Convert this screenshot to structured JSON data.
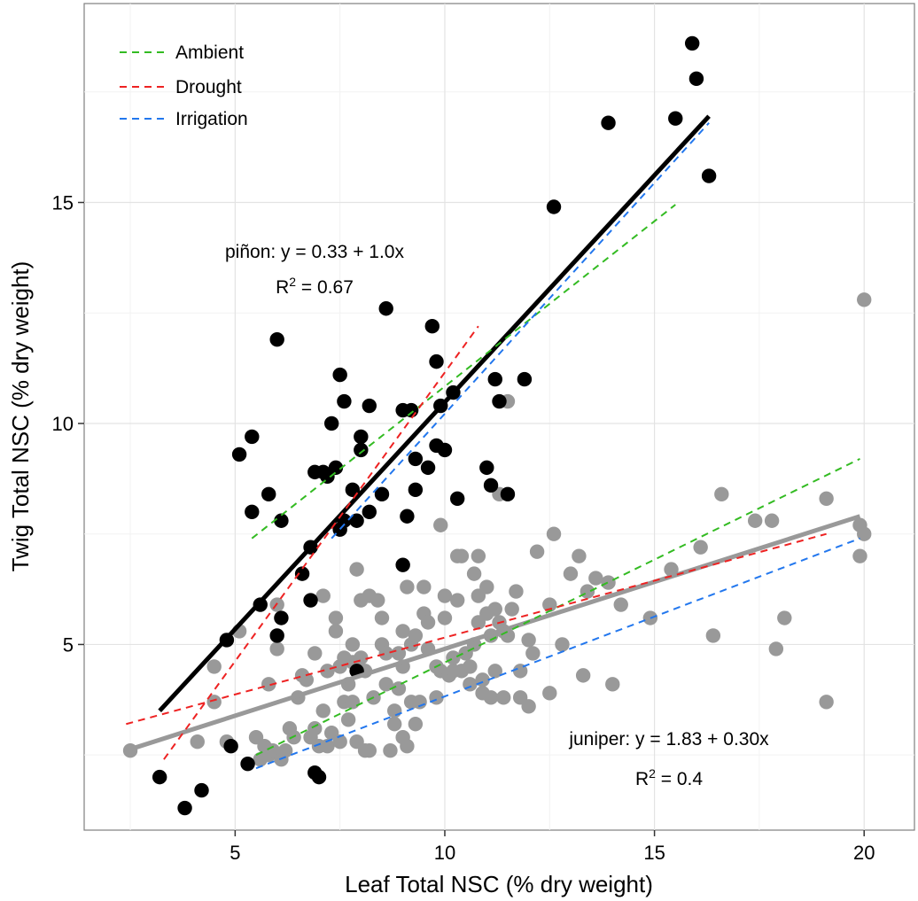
{
  "chart_data": {
    "type": "scatter",
    "xlabel": "Leaf Total NSC (% dry weight)",
    "ylabel": "Twig Total NSC (% dry weight)",
    "xlim": [
      1.4,
      21.2
    ],
    "ylim": [
      0.8,
      19.5
    ],
    "x_ticks": [
      5,
      10,
      15,
      20
    ],
    "y_ticks": [
      5,
      10,
      15
    ],
    "grid": true,
    "legend_position": "top-left",
    "legend": [
      {
        "label": "Ambient",
        "color": "#33bb22"
      },
      {
        "label": "Drought",
        "color": "#ee2222"
      },
      {
        "label": "Irrigation",
        "color": "#2277ee"
      }
    ],
    "annotations": [
      {
        "name": "pinon-equation",
        "text": "piñon: y = 0.33 + 1.0x",
        "r2_prefix": "R",
        "r2_sup": "2",
        "r2_value": " = 0.67"
      },
      {
        "name": "juniper-equation",
        "text": "juniper: y = 1.83 + 0.30x",
        "r2_prefix": "R",
        "r2_sup": "2",
        "r2_value": " = 0.4"
      }
    ],
    "fit_lines": [
      {
        "group": "pinon",
        "color": "#000000",
        "style": "solid",
        "x": [
          3.2,
          16.3
        ],
        "y": [
          3.5,
          16.95
        ]
      },
      {
        "group": "juniper",
        "color": "#999999",
        "style": "solid",
        "x": [
          2.4,
          19.9
        ],
        "y": [
          2.6,
          7.9
        ]
      },
      {
        "group": "pinon",
        "treatment": "Ambient",
        "color": "#33bb22",
        "style": "dashed",
        "x": [
          5.4,
          15.5
        ],
        "y": [
          7.4,
          14.95
        ]
      },
      {
        "group": "pinon",
        "treatment": "Drought",
        "color": "#ee2222",
        "style": "dashed",
        "x": [
          3.3,
          10.8
        ],
        "y": [
          2.4,
          12.2
        ]
      },
      {
        "group": "pinon",
        "treatment": "Irrigation",
        "color": "#2277ee",
        "style": "dashed",
        "x": [
          7.3,
          16.3
        ],
        "y": [
          7.4,
          16.8
        ]
      },
      {
        "group": "juniper",
        "treatment": "Ambient",
        "color": "#33bb22",
        "style": "dashed",
        "x": [
          5.5,
          19.9
        ],
        "y": [
          2.5,
          9.2
        ]
      },
      {
        "group": "juniper",
        "treatment": "Drought",
        "color": "#ee2222",
        "style": "dashed",
        "x": [
          2.4,
          19.1
        ],
        "y": [
          3.2,
          7.5
        ]
      },
      {
        "group": "juniper",
        "treatment": "Irrigation",
        "color": "#2277ee",
        "style": "dashed",
        "x": [
          5.5,
          19.9
        ],
        "y": [
          2.2,
          7.4
        ]
      }
    ],
    "series": [
      {
        "group": "juniper",
        "color": "#999999",
        "points": [
          [
            2.5,
            2.6
          ],
          [
            4.1,
            2.8
          ],
          [
            4.5,
            4.5
          ],
          [
            4.5,
            3.7
          ],
          [
            4.8,
            2.8
          ],
          [
            5.1,
            5.3
          ],
          [
            5.5,
            2.9
          ],
          [
            5.6,
            2.4
          ],
          [
            5.7,
            2.7
          ],
          [
            5.8,
            2.5
          ],
          [
            5.8,
            4.1
          ],
          [
            5.9,
            2.6
          ],
          [
            6.0,
            5.9
          ],
          [
            6.0,
            4.9
          ],
          [
            6.1,
            2.4
          ],
          [
            6.2,
            2.6
          ],
          [
            6.3,
            3.1
          ],
          [
            6.4,
            2.9
          ],
          [
            6.5,
            3.8
          ],
          [
            6.6,
            4.3
          ],
          [
            6.7,
            4.2
          ],
          [
            6.8,
            2.9
          ],
          [
            6.9,
            3.1
          ],
          [
            6.9,
            4.8
          ],
          [
            7.0,
            2.7
          ],
          [
            7.1,
            6.1
          ],
          [
            7.1,
            3.5
          ],
          [
            7.2,
            2.7
          ],
          [
            7.2,
            4.4
          ],
          [
            7.3,
            3.0
          ],
          [
            7.4,
            5.3
          ],
          [
            7.4,
            5.6
          ],
          [
            7.5,
            4.5
          ],
          [
            7.5,
            2.8
          ],
          [
            7.6,
            4.7
          ],
          [
            7.6,
            3.7
          ],
          [
            7.7,
            4.1
          ],
          [
            7.7,
            3.3
          ],
          [
            7.8,
            5.0
          ],
          [
            7.8,
            4.6
          ],
          [
            7.8,
            3.7
          ],
          [
            7.9,
            6.7
          ],
          [
            7.9,
            2.8
          ],
          [
            8.0,
            4.7
          ],
          [
            8.0,
            6.0
          ],
          [
            8.1,
            4.4
          ],
          [
            8.1,
            2.6
          ],
          [
            8.2,
            6.1
          ],
          [
            8.2,
            2.6
          ],
          [
            8.3,
            3.8
          ],
          [
            8.4,
            6.0
          ],
          [
            8.5,
            5.6
          ],
          [
            8.5,
            5.0
          ],
          [
            8.6,
            4.8
          ],
          [
            8.6,
            4.1
          ],
          [
            8.7,
            2.6
          ],
          [
            8.8,
            3.5
          ],
          [
            8.8,
            3.2
          ],
          [
            8.9,
            4.8
          ],
          [
            8.9,
            4.0
          ],
          [
            9.0,
            2.9
          ],
          [
            9.0,
            5.3
          ],
          [
            9.0,
            4.5
          ],
          [
            9.1,
            6.3
          ],
          [
            9.1,
            2.7
          ],
          [
            9.2,
            5.0
          ],
          [
            9.2,
            3.7
          ],
          [
            9.3,
            5.2
          ],
          [
            9.3,
            3.2
          ],
          [
            9.4,
            3.7
          ],
          [
            9.5,
            6.3
          ],
          [
            9.5,
            5.7
          ],
          [
            9.6,
            5.5
          ],
          [
            9.6,
            4.9
          ],
          [
            9.8,
            3.8
          ],
          [
            9.8,
            4.5
          ],
          [
            9.9,
            4.4
          ],
          [
            9.9,
            7.7
          ],
          [
            10.0,
            6.1
          ],
          [
            10.0,
            5.6
          ],
          [
            10.1,
            4.3
          ],
          [
            10.2,
            4.4
          ],
          [
            10.2,
            4.7
          ],
          [
            10.3,
            7.0
          ],
          [
            10.3,
            6.0
          ],
          [
            10.4,
            4.4
          ],
          [
            10.4,
            7.0
          ],
          [
            10.5,
            4.8
          ],
          [
            10.6,
            4.5
          ],
          [
            10.6,
            4.1
          ],
          [
            10.7,
            5.0
          ],
          [
            10.7,
            6.6
          ],
          [
            10.8,
            7.0
          ],
          [
            10.8,
            6.1
          ],
          [
            10.8,
            5.5
          ],
          [
            10.9,
            4.2
          ],
          [
            10.9,
            3.9
          ],
          [
            11.0,
            5.7
          ],
          [
            11.0,
            6.3
          ],
          [
            11.1,
            5.2
          ],
          [
            11.1,
            3.8
          ],
          [
            11.2,
            5.8
          ],
          [
            11.2,
            4.4
          ],
          [
            11.3,
            8.4
          ],
          [
            11.3,
            5.5
          ],
          [
            11.4,
            3.8
          ],
          [
            11.4,
            5.3
          ],
          [
            11.5,
            10.5
          ],
          [
            11.5,
            5.2
          ],
          [
            11.6,
            5.8
          ],
          [
            11.7,
            6.2
          ],
          [
            11.8,
            4.4
          ],
          [
            11.8,
            3.8
          ],
          [
            12.0,
            3.6
          ],
          [
            12.0,
            5.1
          ],
          [
            12.1,
            4.8
          ],
          [
            12.2,
            7.1
          ],
          [
            12.5,
            5.9
          ],
          [
            12.5,
            3.9
          ],
          [
            12.6,
            7.5
          ],
          [
            12.8,
            5.0
          ],
          [
            13.0,
            6.6
          ],
          [
            13.2,
            7.0
          ],
          [
            13.3,
            4.3
          ],
          [
            13.4,
            6.2
          ],
          [
            13.6,
            6.5
          ],
          [
            13.9,
            6.4
          ],
          [
            14.0,
            4.1
          ],
          [
            14.2,
            5.9
          ],
          [
            14.9,
            5.6
          ],
          [
            15.4,
            6.7
          ],
          [
            16.1,
            7.2
          ],
          [
            16.4,
            5.2
          ],
          [
            16.6,
            8.4
          ],
          [
            17.4,
            7.8
          ],
          [
            17.8,
            7.8
          ],
          [
            17.9,
            4.9
          ],
          [
            18.1,
            5.6
          ],
          [
            19.1,
            8.3
          ],
          [
            19.1,
            3.7
          ],
          [
            19.9,
            7.0
          ],
          [
            19.9,
            7.7
          ],
          [
            20.0,
            12.8
          ],
          [
            20.0,
            7.5
          ]
        ]
      },
      {
        "group": "pinon",
        "color": "#000000",
        "points": [
          [
            3.2,
            2.0
          ],
          [
            3.8,
            1.3
          ],
          [
            4.2,
            1.7
          ],
          [
            4.8,
            5.1
          ],
          [
            4.9,
            2.7
          ],
          [
            5.1,
            9.3
          ],
          [
            5.3,
            2.3
          ],
          [
            5.4,
            9.7
          ],
          [
            5.4,
            8.0
          ],
          [
            5.6,
            5.9
          ],
          [
            5.8,
            8.4
          ],
          [
            6.0,
            5.2
          ],
          [
            6.0,
            11.9
          ],
          [
            6.1,
            5.6
          ],
          [
            6.1,
            7.8
          ],
          [
            6.6,
            6.6
          ],
          [
            6.8,
            6.0
          ],
          [
            6.8,
            7.2
          ],
          [
            6.9,
            2.1
          ],
          [
            6.9,
            8.9
          ],
          [
            7.0,
            2.0
          ],
          [
            7.1,
            8.9
          ],
          [
            7.2,
            8.8
          ],
          [
            7.3,
            10.0
          ],
          [
            7.4,
            9.0
          ],
          [
            7.5,
            7.6
          ],
          [
            7.5,
            11.1
          ],
          [
            7.6,
            10.5
          ],
          [
            7.6,
            7.8
          ],
          [
            7.8,
            8.5
          ],
          [
            7.9,
            4.4
          ],
          [
            7.9,
            7.8
          ],
          [
            8.0,
            9.7
          ],
          [
            8.0,
            9.4
          ],
          [
            8.2,
            8.0
          ],
          [
            8.2,
            10.4
          ],
          [
            8.5,
            8.4
          ],
          [
            8.6,
            12.6
          ],
          [
            9.0,
            6.8
          ],
          [
            9.0,
            10.3
          ],
          [
            9.1,
            7.9
          ],
          [
            9.2,
            10.3
          ],
          [
            9.3,
            9.2
          ],
          [
            9.3,
            8.5
          ],
          [
            9.6,
            9.0
          ],
          [
            9.7,
            12.2
          ],
          [
            9.8,
            11.4
          ],
          [
            9.8,
            9.5
          ],
          [
            9.9,
            10.4
          ],
          [
            10.0,
            9.4
          ],
          [
            10.2,
            10.7
          ],
          [
            10.3,
            8.3
          ],
          [
            11.0,
            9.0
          ],
          [
            11.1,
            8.6
          ],
          [
            11.2,
            11.0
          ],
          [
            11.3,
            10.5
          ],
          [
            11.5,
            8.4
          ],
          [
            11.9,
            11.0
          ],
          [
            12.6,
            14.9
          ],
          [
            13.9,
            16.8
          ],
          [
            15.5,
            16.9
          ],
          [
            15.9,
            18.6
          ],
          [
            16.0,
            17.8
          ],
          [
            16.3,
            15.6
          ]
        ]
      }
    ]
  }
}
